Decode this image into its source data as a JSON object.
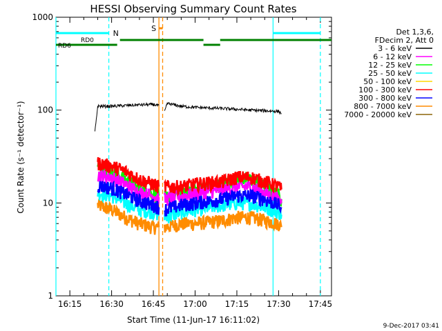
{
  "chart_data": {
    "type": "line",
    "title": "HESSI Observing Summary Count Rates",
    "xlabel": "Start Time (11-Jun-17 16:11:02)",
    "ylabel": "Count Rate (s⁻¹ detector⁻¹)",
    "yscale": "log",
    "ylim": [
      1,
      1000
    ],
    "xlim": [
      "16:10",
      "17:49"
    ],
    "x_ticks": [
      "16:15",
      "16:30",
      "16:45",
      "17:00",
      "17:15",
      "17:30",
      "17:45"
    ],
    "y_ticks": [
      "1",
      "10",
      "100",
      "1000"
    ],
    "legend_header": [
      "Det 1,3,6,",
      "FDecim 2, Att 0"
    ],
    "legend_position": "right",
    "timestamp": "9-Dec-2017 03:41",
    "series": [
      {
        "name": "3 - 6 keV",
        "color": "#000000",
        "segments": [
          {
            "x": [
              "16:24",
              "16:25",
              "16:30",
              "16:35",
              "16:40",
              "16:45",
              "16:47"
            ],
            "y": [
              58,
              110,
              110,
              112,
              114,
              115,
              112
            ]
          },
          {
            "x": [
              "16:49",
              "16:50",
              "16:55",
              "17:00",
              "17:10",
              "17:20",
              "17:30",
              "17:31"
            ],
            "y": [
              95,
              118,
              110,
              107,
              104,
              100,
              97,
              92
            ]
          }
        ]
      },
      {
        "name": "6 - 12 keV",
        "color": "#ff00ff",
        "segments": [
          {
            "x": [
              "16:25",
              "16:30",
              "16:35",
              "16:40",
              "16:45",
              "16:47"
            ],
            "y": [
              20,
              19,
              16,
              13,
              12,
              11.5
            ]
          },
          {
            "x": [
              "16:49",
              "16:55",
              "17:00",
              "17:10",
              "17:15",
              "17:20",
              "17:25",
              "17:30",
              "17:31"
            ],
            "y": [
              11,
              12,
              12.5,
              14,
              15,
              15,
              13,
              11,
              10
            ]
          }
        ]
      },
      {
        "name": "12 - 25 keV",
        "color": "#00ff00",
        "segments": [
          {
            "x": [
              "16:25",
              "16:30",
              "16:35",
              "16:40",
              "16:45",
              "16:47"
            ],
            "y": [
              24,
              22,
              18,
              14,
              12.5,
              12
            ]
          },
          {
            "x": [
              "16:49",
              "16:55",
              "17:00",
              "17:10",
              "17:15",
              "17:20",
              "17:25",
              "17:30",
              "17:31"
            ],
            "y": [
              11.5,
              13,
              14,
              16,
              18,
              18,
              15,
              12,
              11
            ]
          }
        ]
      },
      {
        "name": "25 - 50 keV",
        "color": "#00ffff",
        "segments": [
          {
            "x": [
              "16:25",
              "16:30",
              "16:35",
              "16:40",
              "16:45",
              "16:47"
            ],
            "y": [
              13,
              12,
              10,
              8.5,
              8,
              7.5
            ]
          },
          {
            "x": [
              "16:49",
              "16:55",
              "17:00",
              "17:10",
              "17:15",
              "17:20",
              "17:25",
              "17:30",
              "17:31"
            ],
            "y": [
              7,
              8,
              8.5,
              9.5,
              10,
              10,
              9,
              8,
              7.5
            ]
          }
        ]
      },
      {
        "name": "50 - 100 keV",
        "color": "#ffd700",
        "segments": []
      },
      {
        "name": "100 - 300 keV",
        "color": "#ff0000",
        "segments": [
          {
            "x": [
              "16:25",
              "16:30",
              "16:35",
              "16:40",
              "16:45",
              "16:47"
            ],
            "y": [
              27,
              25,
              22,
              18,
              16,
              15
            ]
          },
          {
            "x": [
              "16:49",
              "16:55",
              "17:00",
              "17:10",
              "17:15",
              "17:20",
              "17:25",
              "17:30",
              "17:31"
            ],
            "y": [
              15,
              15,
              16,
              17,
              19,
              19,
              17,
              15,
              14
            ]
          }
        ]
      },
      {
        "name": "300 - 800 keV",
        "color": "#0000ff",
        "segments": [
          {
            "x": [
              "16:25",
              "16:30",
              "16:35",
              "16:40",
              "16:45",
              "16:47"
            ],
            "y": [
              15.5,
              14.5,
              12.5,
              10.5,
              9.5,
              9
            ]
          },
          {
            "x": [
              "16:49",
              "16:55",
              "17:00",
              "17:10",
              "17:15",
              "17:20",
              "17:25",
              "17:30",
              "17:31"
            ],
            "y": [
              8.5,
              9.5,
              10,
              11,
              12,
              12,
              11,
              9.5,
              9
            ]
          }
        ]
      },
      {
        "name": "800 - 7000 keV",
        "color": "#ff8c00",
        "segments": [
          {
            "x": [
              "16:25",
              "16:30",
              "16:35",
              "16:40",
              "16:45",
              "16:47"
            ],
            "y": [
              9.5,
              8.5,
              7,
              6,
              5.5,
              5.5
            ]
          },
          {
            "x": [
              "16:49",
              "16:55",
              "17:00",
              "17:10",
              "17:15",
              "17:20",
              "17:25",
              "17:30",
              "17:31"
            ],
            "y": [
              5.5,
              6,
              6,
              6.5,
              7,
              7,
              6.5,
              6,
              5.5
            ]
          }
        ]
      },
      {
        "name": "7000 - 20000 keV",
        "color": "#8b6508",
        "segments": []
      }
    ],
    "annotations": {
      "saa": {
        "label": "S",
        "color": "#ff8c00",
        "x_start": "16:47",
        "x_end": "16:48:20"
      },
      "night": {
        "label": "N",
        "color": "#00ffff",
        "intervals": [
          [
            "16:10",
            "16:29"
          ],
          [
            "17:28",
            "17:45"
          ]
        ]
      },
      "orbit_bars_cyan": [
        [
          "16:10",
          "16:29"
        ],
        [
          "17:28",
          "17:45"
        ]
      ],
      "rd0": {
        "label": "RD0",
        "color": "#008000",
        "intervals": [
          [
            "16:33",
            "17:03"
          ],
          [
            "17:09",
            "17:49"
          ]
        ]
      },
      "rd6": {
        "label": "RD6",
        "color": "#008000",
        "intervals": [
          [
            "16:10",
            "16:32"
          ],
          [
            "17:03",
            "17:09"
          ]
        ]
      }
    }
  }
}
